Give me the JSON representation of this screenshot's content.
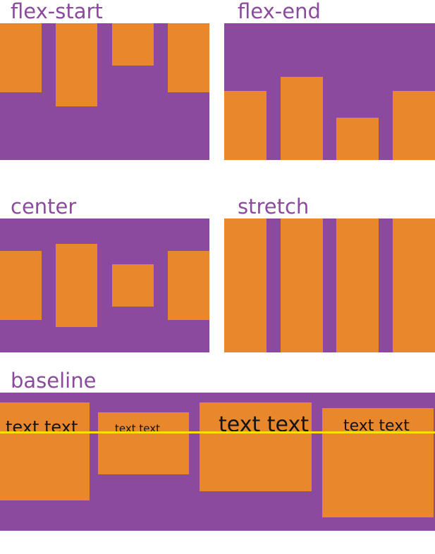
{
  "colors": {
    "container": "#8b4a9e",
    "item": "#e8872b",
    "baseline_line": "#ffe100",
    "label_text": "#141414",
    "title": "#8b4a9e",
    "page_bg": "#ffffff"
  },
  "panels": [
    {
      "title": "flex-start"
    },
    {
      "title": "flex-end"
    },
    {
      "title": "center"
    },
    {
      "title": "stretch"
    },
    {
      "title": "baseline",
      "items": [
        {
          "label": "text text"
        },
        {
          "label": "text text"
        },
        {
          "label": "text text"
        },
        {
          "label": "text text"
        }
      ]
    }
  ]
}
